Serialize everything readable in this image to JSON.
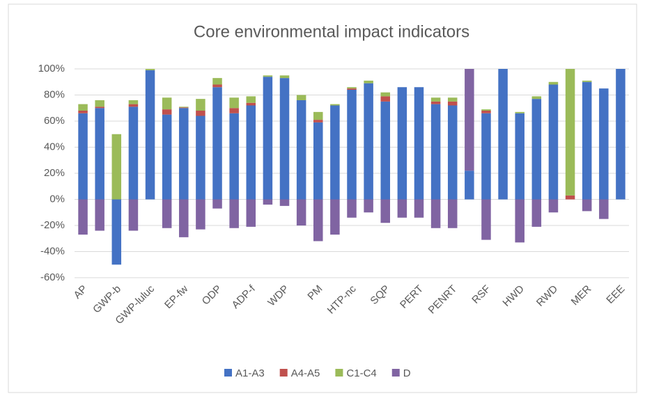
{
  "chart_data": {
    "type": "stacked_bar",
    "title": "Core environmental impact indicators",
    "categories": [
      "AP",
      null,
      "GWP-b",
      null,
      "GWP-luluc",
      null,
      "EP-fw",
      null,
      "ODP",
      null,
      "ADP-f",
      null,
      "WDP",
      null,
      "PM",
      null,
      "HTP-nc",
      null,
      "SQP",
      null,
      "PERT",
      null,
      "PENRT",
      null,
      "RSF",
      null,
      "HWD",
      null,
      "RWD",
      null,
      "MER",
      null,
      "EEE"
    ],
    "series": [
      {
        "name": "A1-A3",
        "color": "#4472c4",
        "values": [
          66,
          70,
          -50,
          71,
          99,
          65,
          70,
          64,
          86,
          66,
          72,
          94,
          93,
          76,
          59,
          72,
          84,
          89,
          75,
          86,
          86,
          73,
          72,
          22,
          66,
          100,
          66,
          77,
          88,
          0,
          90,
          85,
          100
        ]
      },
      {
        "name": "A4-A5",
        "color": "#c0504d",
        "values": [
          2,
          1,
          0,
          2,
          0,
          4,
          0.5,
          4,
          2,
          4,
          2,
          0,
          0,
          0,
          2,
          0,
          1,
          0,
          4,
          0,
          0,
          2,
          3,
          0,
          2,
          0,
          0,
          0,
          0,
          3,
          0,
          0,
          0
        ]
      },
      {
        "name": "C1-C4",
        "color": "#9bbb59",
        "values": [
          5,
          5,
          50,
          3,
          1,
          9,
          0.5,
          9,
          5,
          8,
          5,
          1,
          2,
          4,
          6,
          1,
          1,
          2,
          3,
          0,
          0,
          3,
          3,
          0,
          1,
          0,
          1,
          2,
          2,
          97,
          1,
          0,
          0
        ]
      },
      {
        "name": "D",
        "color": "#8064a2",
        "values": [
          -27,
          -24,
          0,
          -24,
          0,
          -22,
          -29,
          -23,
          -7,
          -22,
          -21,
          -4,
          -5,
          -20,
          -32,
          -27,
          -14,
          -10,
          -18,
          -14,
          -14,
          -22,
          -22,
          78,
          -31,
          0,
          -33,
          -21,
          -10,
          0,
          -9,
          -15,
          0
        ]
      }
    ],
    "ylim": [
      -60,
      100
    ],
    "yticks": [
      {
        "value": -60,
        "label": "-60%"
      },
      {
        "value": -40,
        "label": "-40%"
      },
      {
        "value": -20,
        "label": "-20%"
      },
      {
        "value": 0,
        "label": "0%"
      },
      {
        "value": 20,
        "label": "20%"
      },
      {
        "value": 40,
        "label": "40%"
      },
      {
        "value": 60,
        "label": "60%"
      },
      {
        "value": 80,
        "label": "80%"
      },
      {
        "value": 100,
        "label": "100%"
      }
    ],
    "grid": true,
    "legend": "bottom"
  }
}
